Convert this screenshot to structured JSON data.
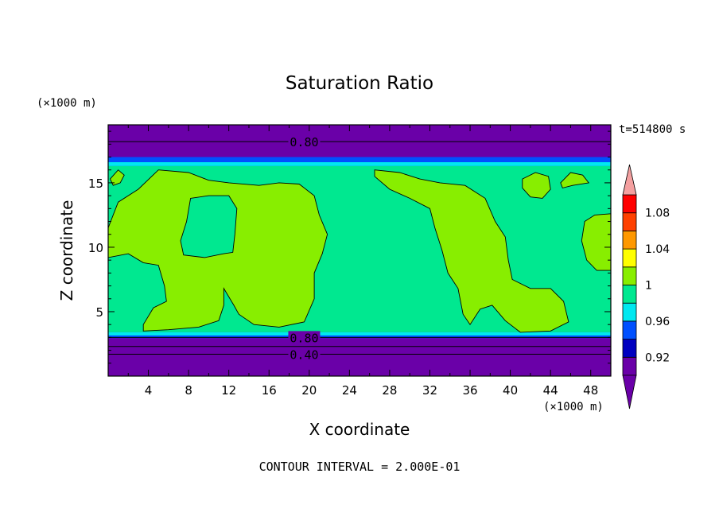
{
  "chart_data": {
    "type": "heatmap",
    "title": "Saturation Ratio",
    "xlabel": "X coordinate",
    "ylabel": "Z coordinate",
    "x_unit": "(×1000 m)",
    "y_unit": "(×1000 m)",
    "time_label": "t=514800 s",
    "footer": "CONTOUR INTERVAL = 2.000E-01",
    "xlim": [
      0,
      50
    ],
    "ylim": [
      0,
      19.5
    ],
    "x_ticks": [
      4,
      8,
      12,
      16,
      20,
      24,
      28,
      32,
      36,
      40,
      44,
      48
    ],
    "x_tick_labels": [
      "4",
      "8",
      "12",
      "16",
      "20",
      "24",
      "28",
      "32",
      "36",
      "40",
      "44",
      "48"
    ],
    "y_ticks": [
      5,
      10,
      15
    ],
    "y_tick_labels": [
      "5",
      "10",
      "15"
    ],
    "colorbar": {
      "levels": [
        0.9,
        0.92,
        0.94,
        0.96,
        0.98,
        1.0,
        1.02,
        1.04,
        1.06,
        1.08,
        1.1
      ],
      "labeled_levels": [
        0.92,
        0.96,
        1.0,
        1.04,
        1.08
      ],
      "labels": [
        "0.92",
        "0.96",
        "1",
        "1.04",
        "1.08"
      ],
      "colors": [
        "#6a00a8",
        "#0000c0",
        "#0050ff",
        "#00e8f0",
        "#00e890",
        "#88ee00",
        "#ffff00",
        "#ff9800",
        "#ff4000",
        "#ff0000"
      ],
      "under_color": "#6a00a8",
      "over_color": "#f4a0a0"
    },
    "contour_labels": [
      {
        "text": "0.80",
        "x": 19.5,
        "z": 18.2
      },
      {
        "text": "0.80",
        "x": 19.5,
        "z": 3.0
      },
      {
        "text": "0.40",
        "x": 19.5,
        "z": 1.7
      }
    ],
    "regions": {
      "upper_purple_top": 19.5,
      "upper_purple_bottom": 16.8,
      "upper_navy_line": 17.0,
      "moist_top": 16.3,
      "moist_bottom": 3.4,
      "lower_purple_top": 3.0,
      "background_value": 0.99,
      "cloud_value": 1.01
    },
    "cloud_patches": [
      {
        "name": "left-cloud",
        "value": 1.01,
        "points": [
          [
            0,
            11.5
          ],
          [
            1,
            13.5
          ],
          [
            3,
            14.5
          ],
          [
            5,
            16.0
          ],
          [
            8,
            15.8
          ],
          [
            10,
            15.2
          ],
          [
            12,
            15.0
          ],
          [
            15,
            14.8
          ],
          [
            17,
            15.0
          ],
          [
            19,
            14.9
          ],
          [
            20.5,
            14.0
          ],
          [
            21,
            12.5
          ],
          [
            21.8,
            11.0
          ],
          [
            21.3,
            9.5
          ],
          [
            20.5,
            8.0
          ],
          [
            20.5,
            6.0
          ],
          [
            19.5,
            4.2
          ],
          [
            17.0,
            3.8
          ],
          [
            14.5,
            4.0
          ],
          [
            13.0,
            4.8
          ],
          [
            12.5,
            5.5
          ],
          [
            11.5,
            6.8
          ],
          [
            11.5,
            5.5
          ],
          [
            11.0,
            4.3
          ],
          [
            9.0,
            3.8
          ],
          [
            6.0,
            3.6
          ],
          [
            3.5,
            3.5
          ],
          [
            3.5,
            4.0
          ],
          [
            4.5,
            5.3
          ],
          [
            5.8,
            5.8
          ],
          [
            5.6,
            7.0
          ],
          [
            5.0,
            8.6
          ],
          [
            3.5,
            8.8
          ],
          [
            2.0,
            9.5
          ],
          [
            0,
            9.2
          ]
        ]
      },
      {
        "name": "right-cloud",
        "value": 1.01,
        "points": [
          [
            26.5,
            16.0
          ],
          [
            29,
            15.8
          ],
          [
            31,
            15.3
          ],
          [
            33,
            15.0
          ],
          [
            35.5,
            14.8
          ],
          [
            37.5,
            13.8
          ],
          [
            38.5,
            12.0
          ],
          [
            39.5,
            10.8
          ],
          [
            39.8,
            9.0
          ],
          [
            40.2,
            7.5
          ],
          [
            42.0,
            6.8
          ],
          [
            44.0,
            6.8
          ],
          [
            45.3,
            5.8
          ],
          [
            45.8,
            4.2
          ],
          [
            44.0,
            3.5
          ],
          [
            41.0,
            3.4
          ],
          [
            39.5,
            4.3
          ],
          [
            38.2,
            5.5
          ],
          [
            37.0,
            5.2
          ],
          [
            36.0,
            4.0
          ],
          [
            35.3,
            4.8
          ],
          [
            34.8,
            6.8
          ],
          [
            33.8,
            8.0
          ],
          [
            33.2,
            9.8
          ],
          [
            32.5,
            11.5
          ],
          [
            32.0,
            13.0
          ],
          [
            30.0,
            13.8
          ],
          [
            28.0,
            14.5
          ],
          [
            26.5,
            15.5
          ]
        ]
      },
      {
        "name": "small-cloud-a",
        "value": 1.01,
        "points": [
          [
            41.2,
            15.3
          ],
          [
            42.5,
            15.8
          ],
          [
            43.8,
            15.5
          ],
          [
            44.0,
            14.5
          ],
          [
            43.2,
            13.8
          ],
          [
            42.0,
            13.9
          ],
          [
            41.2,
            14.6
          ]
        ]
      },
      {
        "name": "small-cloud-b",
        "value": 1.01,
        "points": [
          [
            45.0,
            15.0
          ],
          [
            46.0,
            15.8
          ],
          [
            47.2,
            15.6
          ],
          [
            47.8,
            15.0
          ],
          [
            46.2,
            14.8
          ],
          [
            45.2,
            14.6
          ]
        ]
      },
      {
        "name": "small-cloud-c",
        "value": 1.01,
        "points": [
          [
            47.4,
            12.0
          ],
          [
            48.4,
            12.5
          ],
          [
            50,
            12.6
          ],
          [
            50,
            8.2
          ],
          [
            48.6,
            8.2
          ],
          [
            47.6,
            9.0
          ],
          [
            47.1,
            10.5
          ]
        ]
      },
      {
        "name": "small-cloud-d",
        "value": 1.01,
        "points": [
          [
            0.2,
            15.3
          ],
          [
            1.0,
            16.0
          ],
          [
            1.6,
            15.6
          ],
          [
            1.2,
            15.0
          ],
          [
            0.5,
            14.8
          ]
        ]
      }
    ],
    "moist_holes": [
      {
        "name": "left-hole",
        "value": 0.99,
        "points": [
          [
            8.2,
            13.8
          ],
          [
            10,
            14.0
          ],
          [
            12.0,
            14.0
          ],
          [
            12.8,
            13.0
          ],
          [
            12.6,
            11.0
          ],
          [
            12.4,
            9.6
          ],
          [
            11.5,
            9.5
          ],
          [
            9.6,
            9.2
          ],
          [
            7.5,
            9.4
          ],
          [
            7.2,
            10.5
          ],
          [
            7.8,
            12.0
          ]
        ]
      }
    ]
  }
}
